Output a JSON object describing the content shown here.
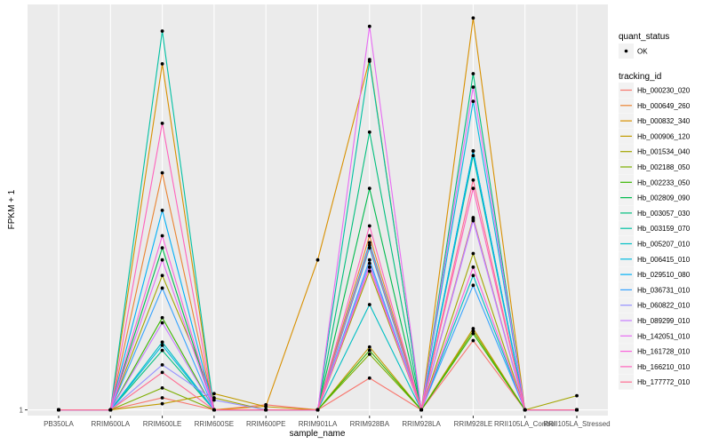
{
  "chart_data": {
    "type": "line",
    "title": "",
    "xlabel": "sample_name",
    "ylabel": "FPKM + 1",
    "y_scale": "log10",
    "y_ticks": [
      1
    ],
    "y_tick_labels": [
      "1"
    ],
    "ylim": [
      0.9,
      1800
    ],
    "grid": true,
    "legend_position": "right",
    "categories": [
      "PB350LA",
      "RRIM600LA",
      "RRIM600LE",
      "RRIM600SE",
      "RRIM600PE",
      "RRIM901LA",
      "RRIM928BA",
      "RRIM928LA",
      "RRIM928LE",
      "RRII105LA_Control",
      "RRII105LA_Stressed"
    ],
    "point_legend": {
      "title": "quant_status",
      "items": [
        {
          "label": "OK",
          "shape": "circle"
        }
      ]
    },
    "line_legend_title": "tracking_id",
    "series": [
      {
        "name": "Hb_000230_020",
        "color": "#F8766D",
        "values": [
          1,
          1,
          1.25,
          1,
          1.1,
          1,
          1.8,
          1,
          3.6,
          1,
          1
        ]
      },
      {
        "name": "Hb_000649_260",
        "color": "#EA8331",
        "values": [
          1,
          1,
          80,
          1,
          1,
          1,
          25,
          1,
          35,
          1,
          1
        ]
      },
      {
        "name": "Hb_000832_340",
        "color": "#D89000",
        "values": [
          1,
          1,
          600,
          1,
          1.07,
          16,
          650,
          1,
          1400,
          1,
          1
        ]
      },
      {
        "name": "Hb_000906_120",
        "color": "#C09B00",
        "values": [
          1,
          1,
          1.12,
          1.35,
          1.06,
          1,
          3.2,
          1,
          4.5,
          1,
          1
        ]
      },
      {
        "name": "Hb_001534_040",
        "color": "#A3A500",
        "values": [
          1,
          1,
          12,
          1.25,
          1,
          1,
          13,
          1,
          18,
          1,
          1.3
        ]
      },
      {
        "name": "Hb_002188_050",
        "color": "#7CAE00",
        "values": [
          1,
          1,
          1.5,
          1,
          1,
          1,
          2.8,
          1,
          4.3,
          1,
          1
        ]
      },
      {
        "name": "Hb_002233_050",
        "color": "#39B600",
        "values": [
          1,
          1,
          5.5,
          1,
          1,
          1,
          3,
          1,
          4.1,
          1,
          1
        ]
      },
      {
        "name": "Hb_002809_090",
        "color": "#00BB4E",
        "values": [
          1,
          1,
          20,
          1,
          1,
          1,
          60,
          1,
          120,
          1,
          1
        ]
      },
      {
        "name": "Hb_003057_030",
        "color": "#00BF7D",
        "values": [
          1,
          1,
          3,
          1,
          1,
          1,
          170,
          1,
          500,
          1,
          1
        ]
      },
      {
        "name": "Hb_003159_070",
        "color": "#00C1A3",
        "values": [
          1,
          1,
          1100,
          1,
          1,
          1,
          630,
          1,
          110,
          1,
          1
        ]
      },
      {
        "name": "Hb_005207_010",
        "color": "#00BFC4",
        "values": [
          1,
          1,
          3.5,
          1,
          1,
          1,
          7,
          1,
          12,
          1,
          1
        ]
      },
      {
        "name": "Hb_006415_010",
        "color": "#00BAE0",
        "values": [
          1,
          1,
          3.3,
          1,
          1,
          1,
          22,
          1,
          300,
          1,
          1
        ]
      },
      {
        "name": "Hb_029510_080",
        "color": "#00B0F6",
        "values": [
          1,
          1,
          40,
          1,
          1,
          1,
          20,
          1,
          120,
          1,
          1
        ]
      },
      {
        "name": "Hb_036731_010",
        "color": "#35A2FF",
        "values": [
          1,
          1,
          9.5,
          1,
          1,
          1,
          16,
          1,
          10,
          1,
          1
        ]
      },
      {
        "name": "Hb_060822_010",
        "color": "#9590FF",
        "values": [
          1,
          1,
          2.3,
          1.2,
          1,
          1,
          15,
          1,
          34,
          1,
          1
        ]
      },
      {
        "name": "Hb_089299_010",
        "color": "#C77CFF",
        "values": [
          1,
          1,
          5,
          1,
          1,
          1,
          14,
          1,
          33,
          1,
          1
        ]
      },
      {
        "name": "Hb_142051_010",
        "color": "#E76BF3",
        "values": [
          1,
          1,
          16,
          1,
          1,
          1,
          1200,
          1,
          390,
          1,
          1
        ]
      },
      {
        "name": "Hb_161728_010",
        "color": "#FA62DB",
        "values": [
          1,
          1,
          25,
          1,
          1,
          1,
          14,
          1,
          14,
          1,
          1
        ]
      },
      {
        "name": "Hb_166210_010",
        "color": "#FF62BC",
        "values": [
          1,
          1,
          200,
          1,
          1,
          1,
          30,
          1,
          60,
          1,
          1
        ]
      },
      {
        "name": "Hb_177772_010",
        "color": "#FF6C91",
        "values": [
          1,
          1,
          2,
          1,
          1,
          1,
          21,
          1,
          70,
          1,
          1
        ]
      }
    ]
  }
}
